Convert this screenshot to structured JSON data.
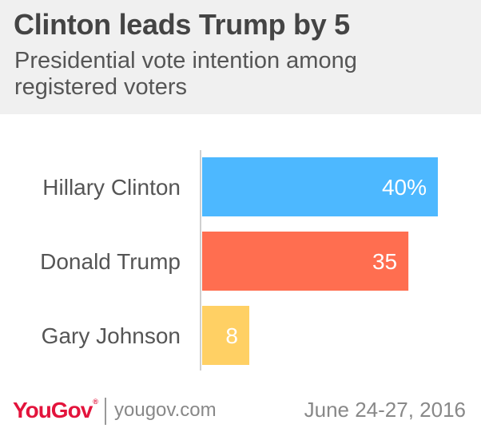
{
  "header": {
    "title": "Clinton leads Trump by 5",
    "subtitle": "Presidential vote intention among registered voters"
  },
  "chart_data": {
    "type": "bar",
    "orientation": "horizontal",
    "categories": [
      "Hillary Clinton",
      "Donald Trump",
      "Gary Johnson"
    ],
    "values": [
      40,
      35,
      8
    ],
    "value_labels": [
      "40%",
      "35",
      "8"
    ],
    "colors": [
      "#4db8ff",
      "#ff6e50",
      "#ffd064"
    ],
    "title": "Clinton leads Trump by 5",
    "subtitle": "Presidential vote intention among registered voters",
    "xlim": [
      0,
      40
    ],
    "grid": false,
    "legend": "none"
  },
  "footer": {
    "logo": "YouGov",
    "trademark": "®",
    "url": "yougov.com",
    "date": "June 24-27, 2016"
  }
}
